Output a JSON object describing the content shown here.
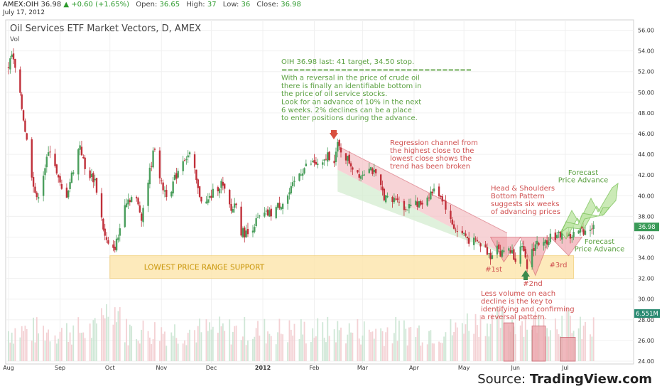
{
  "header": {
    "symbol": "AMEX:OIH",
    "last": "36.98",
    "change": "+0.60 (+1.65%)",
    "open_label": "Open:",
    "open": "36.65",
    "high_label": "High:",
    "high": "37",
    "low_label": "Low:",
    "low": "36",
    "close_label": "Close:",
    "close": "36.98",
    "date": "July 17, 2012"
  },
  "source": {
    "prefix": "Source: ",
    "brand": "TradingView.com"
  },
  "colors": {
    "up": "#4a9e5c",
    "down": "#c0303a",
    "green_text": "#5aa040",
    "red_text": "#d05050",
    "support_fill": "#fde7b0",
    "support_text": "#c9960a",
    "channel_red": "#f3c0c4",
    "channel_green": "#d4ecd0",
    "price_tag": "#3a9a58",
    "vol_tag": "#2a8a72"
  },
  "chart_data": {
    "type": "candlestick",
    "title": "Oil Services ETF Market Vectors, D, AMEX",
    "sublabel": "Vol",
    "ylim": [
      24,
      57
    ],
    "yticks": [
      "56.00",
      "54.00",
      "52.00",
      "50.00",
      "48.00",
      "46.00",
      "44.00",
      "42.00",
      "40.00",
      "38.00",
      "36.00",
      "34.00",
      "32.00",
      "30.00",
      "28.00",
      "26.00",
      "24.00"
    ],
    "xticks": [
      "Aug",
      "Sep",
      "Oct",
      "Nov",
      "Dec",
      "2012",
      "Feb",
      "Mar",
      "Apr",
      "May",
      "Jun",
      "Jul"
    ],
    "month_days": [
      0,
      31,
      61,
      92,
      122,
      153,
      184,
      213,
      244,
      274,
      305,
      335
    ],
    "days_span": 352,
    "last_price": "36.98",
    "last_volume": "6.551M",
    "price_path": [
      [
        0,
        52.5
      ],
      [
        2,
        53.6
      ],
      [
        5,
        51.5
      ],
      [
        9,
        47.5
      ],
      [
        13,
        43
      ],
      [
        17,
        39.5
      ],
      [
        19,
        41
      ],
      [
        24,
        44
      ],
      [
        26,
        45.2
      ],
      [
        29,
        42
      ],
      [
        34,
        39.5
      ],
      [
        38,
        42
      ],
      [
        43,
        45
      ],
      [
        46,
        42.5
      ],
      [
        52,
        41.5
      ],
      [
        58,
        36
      ],
      [
        62,
        34.2
      ],
      [
        66,
        36
      ],
      [
        70,
        39.5
      ],
      [
        76,
        40
      ],
      [
        80,
        38
      ],
      [
        86,
        43.2
      ],
      [
        88,
        44.8
      ],
      [
        92,
        41
      ],
      [
        96,
        40
      ],
      [
        101,
        42
      ],
      [
        104,
        43.5
      ],
      [
        110,
        44
      ],
      [
        114,
        40.5
      ],
      [
        118,
        39
      ],
      [
        124,
        40.5
      ],
      [
        128,
        41.2
      ],
      [
        134,
        38.5
      ],
      [
        137,
        39.5
      ],
      [
        140,
        36.5
      ],
      [
        144,
        36.3
      ],
      [
        148,
        37.3
      ],
      [
        152,
        38
      ],
      [
        158,
        38.3
      ],
      [
        162,
        39
      ],
      [
        166,
        39.5
      ],
      [
        170,
        40.5
      ],
      [
        174,
        42
      ],
      [
        180,
        43
      ],
      [
        184,
        43.2
      ],
      [
        188,
        42.5
      ],
      [
        192,
        44
      ],
      [
        196,
        43.5
      ],
      [
        198,
        44.8
      ],
      [
        202,
        44
      ],
      [
        207,
        42.8
      ],
      [
        212,
        42
      ],
      [
        217,
        43
      ],
      [
        222,
        41.5
      ],
      [
        226,
        40
      ],
      [
        230,
        39.2
      ],
      [
        234,
        40
      ],
      [
        238,
        38.5
      ],
      [
        242,
        39.5
      ],
      [
        246,
        39
      ],
      [
        250,
        39.5
      ],
      [
        254,
        40.3
      ],
      [
        258,
        40.5
      ],
      [
        262,
        39.5
      ],
      [
        266,
        37.5
      ],
      [
        270,
        36.5
      ],
      [
        274,
        36.3
      ],
      [
        278,
        35.5
      ],
      [
        282,
        35.5
      ],
      [
        286,
        35
      ],
      [
        290,
        34.2
      ],
      [
        294,
        35.5
      ],
      [
        296,
        34.2
      ],
      [
        300,
        35.2
      ],
      [
        305,
        34
      ],
      [
        308,
        35.5
      ],
      [
        312,
        33
      ],
      [
        314,
        34.5
      ],
      [
        318,
        35.5
      ],
      [
        322,
        35.2
      ],
      [
        326,
        36.2
      ],
      [
        330,
        36
      ],
      [
        334,
        36.5
      ],
      [
        338,
        36
      ],
      [
        342,
        36.5
      ],
      [
        347,
        36.7
      ],
      [
        351,
        36.98
      ]
    ],
    "support": {
      "label": "LOWEST PRICE RANGE SUPPORT",
      "range": [
        32,
        34.2
      ],
      "from_day": 61,
      "to_day": 340
    },
    "regression_channel": {
      "from_day": 198,
      "to_day": 300,
      "upper": [
        44.8,
        36.4
      ],
      "mid": [
        42.5,
        34.2
      ],
      "lower": [
        41.8,
        34.2
      ]
    },
    "annotations": [
      {
        "id": "trade_plan",
        "color": "green",
        "lines": [
          "OIH 36.98 last: 41 target, 34.50 stop.",
          "================================",
          "With a reversal in the price of crude oil",
          "there is finally an identifiable bottom in",
          "the price of oil service stocks.",
          "Look for an advance of 10% in the next",
          "6 weeks.  2% declines can be a place",
          "to enter positions during the advance."
        ]
      },
      {
        "id": "regression_note",
        "color": "red",
        "lines": [
          "Regression channel from",
          "the highest close to the",
          "lowest close shows the",
          "trend has been broken"
        ]
      },
      {
        "id": "hs_note",
        "color": "red",
        "lines": [
          "Head & Shoulders",
          "Bottom Pattern",
          "suggests six weeks",
          "of advancing prices"
        ]
      },
      {
        "id": "volume_note",
        "color": "red",
        "lines": [
          "Less volume on each",
          "decline is the key to",
          "identifying and confirming",
          "a reversal pattern."
        ]
      },
      {
        "id": "forecast_upper",
        "color": "green",
        "lines": [
          "Forecast",
          "Price Advance"
        ]
      },
      {
        "id": "forecast_lower",
        "color": "green",
        "lines": [
          "Forecast",
          "Price Advance"
        ]
      },
      {
        "id": "first",
        "color": "red",
        "lines": [
          "#1st"
        ]
      },
      {
        "id": "second",
        "color": "red",
        "lines": [
          "#2nd"
        ]
      },
      {
        "id": "third",
        "color": "red",
        "lines": [
          "#3rd"
        ]
      }
    ],
    "volume_boxes": [
      {
        "from_day": 298,
        "to_day": 304,
        "top": 27.7
      },
      {
        "from_day": 315,
        "to_day": 323,
        "top": 27.4
      },
      {
        "from_day": 332,
        "to_day": 341,
        "top": 26.3
      }
    ]
  }
}
